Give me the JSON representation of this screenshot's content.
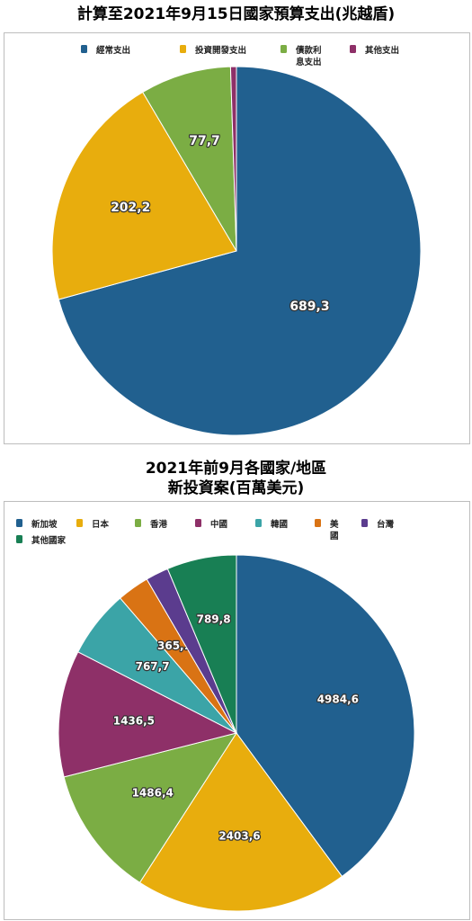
{
  "chart_data": [
    {
      "type": "pie",
      "title": "計算至2021年9月15日國家預算支出(兆越盾)",
      "categories": [
        "經常支出",
        "投資開發支出",
        "債款利息支出",
        "其他支出"
      ],
      "legend_lines": [
        [
          "經常支出"
        ],
        [
          "投資開發支出"
        ],
        [
          "債款利",
          "息支出"
        ],
        [
          "其他支出"
        ]
      ],
      "values": [
        689.3,
        202.2,
        77.7,
        5.0
      ],
      "labels": [
        "689,3",
        "202,2",
        "77,7",
        ""
      ],
      "colors": [
        "#21608f",
        "#e8ad0d",
        "#7bad44",
        "#8e3068"
      ],
      "legend_position": "top"
    },
    {
      "type": "pie",
      "title": "2021年前9月各國家/地區",
      "subtitle": "新投資案(百萬美元)",
      "categories": [
        "新加坡",
        "日本",
        "香港",
        "中國",
        "韓國",
        "美國",
        "台灣",
        "其他國家"
      ],
      "legend_lines": [
        [
          "新加坡"
        ],
        [
          "日本"
        ],
        [
          "香港"
        ],
        [
          "中國"
        ],
        [
          "韓國"
        ],
        [
          "美",
          "國"
        ],
        [
          "台灣"
        ],
        [
          "其他國家"
        ]
      ],
      "values": [
        4984.6,
        2403.6,
        1486.4,
        1436.5,
        767.7,
        365.1,
        260,
        789.8
      ],
      "labels": [
        "4984,6",
        "2403,6",
        "1486,4",
        "1436,5",
        "767,7",
        "365,1",
        "",
        "789,8"
      ],
      "colors": [
        "#21608f",
        "#e8ad0d",
        "#7bad44",
        "#8e3068",
        "#3ba4a7",
        "#d97314",
        "#5b3c8e",
        "#187f54"
      ],
      "legend_position": "top"
    }
  ]
}
